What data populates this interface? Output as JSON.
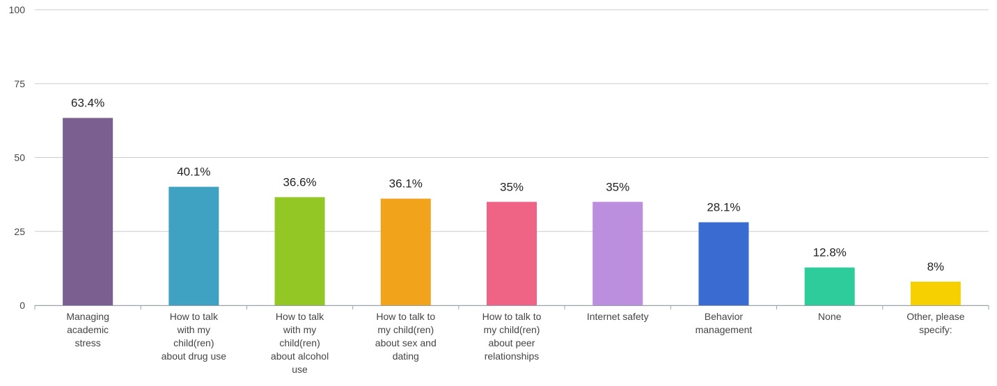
{
  "chart_data": {
    "type": "bar",
    "title": "",
    "xlabel": "",
    "ylabel": "",
    "ylim": [
      0,
      100
    ],
    "yticks": [
      0,
      25,
      50,
      75,
      100
    ],
    "grid": true,
    "legend": "none",
    "categories": [
      [
        "Managing",
        "academic",
        "stress"
      ],
      [
        "How to talk",
        "with my",
        "child(ren)",
        "about drug use"
      ],
      [
        "How to talk",
        "with my",
        "child(ren)",
        "about alcohol",
        "use"
      ],
      [
        "How to talk to",
        "my child(ren)",
        "about sex and",
        "dating"
      ],
      [
        "How to talk to",
        "my child(ren)",
        "about peer",
        "relationships"
      ],
      [
        "Internet safety"
      ],
      [
        "Behavior",
        "management"
      ],
      [
        "None"
      ],
      [
        "Other, please",
        "specify:"
      ]
    ],
    "values": [
      63.4,
      40.1,
      36.6,
      36.1,
      35,
      35,
      28.1,
      12.8,
      8
    ],
    "value_labels": [
      "63.4%",
      "40.1%",
      "36.6%",
      "36.1%",
      "35%",
      "35%",
      "28.1%",
      "12.8%",
      "8%"
    ],
    "colors": [
      "#7b5f91",
      "#3fa2c2",
      "#93c726",
      "#f2a31c",
      "#ef6384",
      "#bb8fde",
      "#3a6bd1",
      "#2ecc9b",
      "#f6d000"
    ]
  }
}
